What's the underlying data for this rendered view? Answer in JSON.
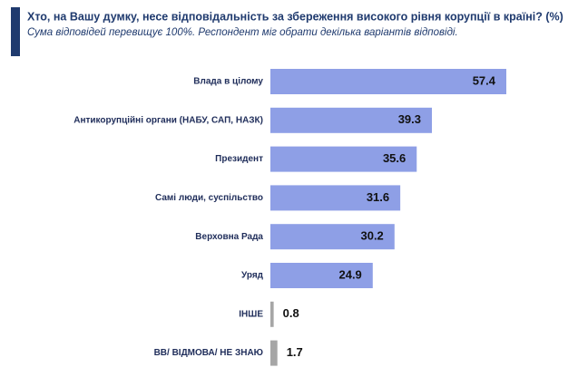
{
  "chart_data": {
    "type": "bar",
    "orientation": "horizontal",
    "title": "Хто, на Вашу думку, несе відповідальність за збереження високого рівня корупції в країні? (%)",
    "subtitle": "Сума відповідей перевищує 100%. Респондент міг обрати декілька варіантів відповіді.",
    "categories": [
      "Влада в цілому",
      "Антикорупційні органи (НАБУ, САП, НАЗК)",
      "Президент",
      "Самі люди, суспільство",
      "Верховна Рада",
      "Уряд",
      "ІНШЕ",
      "ВВ/ ВІДМОВА/ НЕ ЗНАЮ"
    ],
    "values": [
      57.4,
      39.3,
      35.6,
      31.6,
      30.2,
      24.9,
      0.8,
      1.7
    ],
    "colors": [
      "#8e9fe6",
      "#8e9fe6",
      "#8e9fe6",
      "#8e9fe6",
      "#8e9fe6",
      "#8e9fe6",
      "#a6a6a6",
      "#a6a6a6"
    ]
  }
}
